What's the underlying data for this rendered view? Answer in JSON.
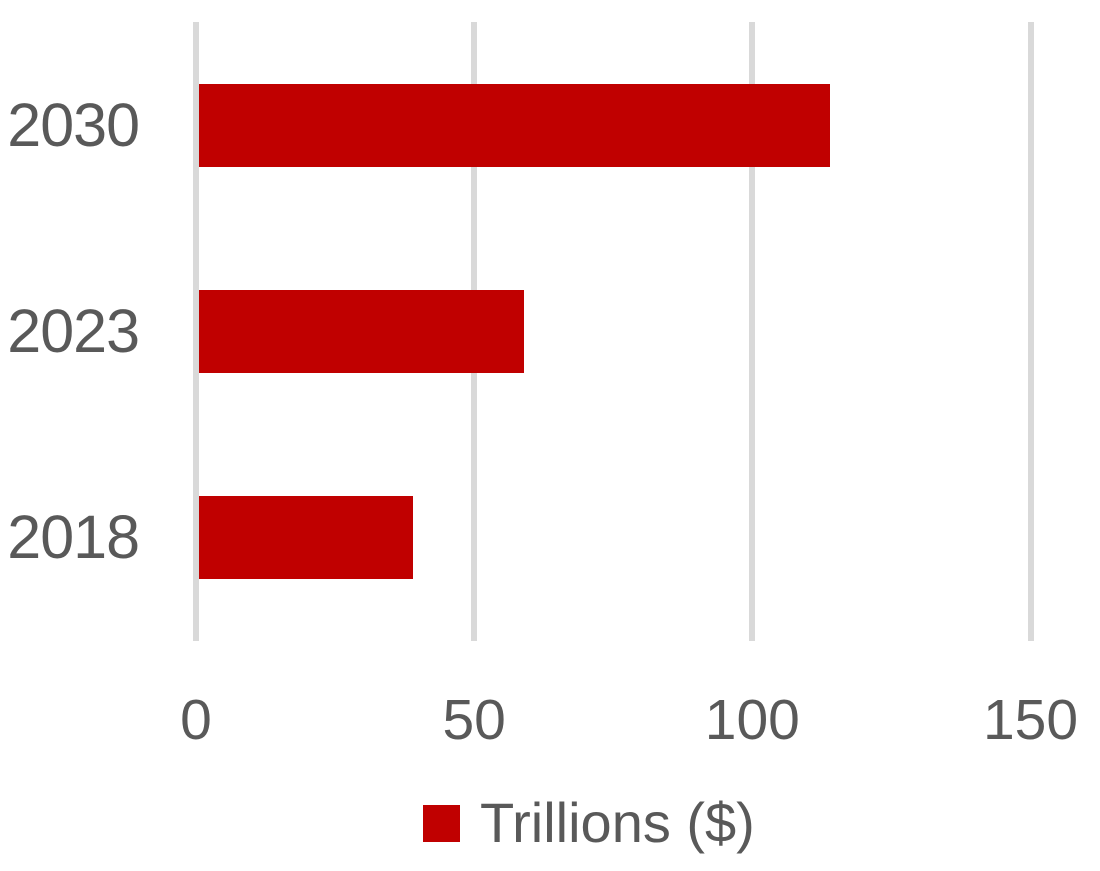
{
  "chart_data": {
    "type": "bar",
    "orientation": "horizontal",
    "title": "",
    "xlabel": "",
    "ylabel": "",
    "categories": [
      "2030",
      "2023",
      "2018"
    ],
    "values": [
      114,
      59,
      39
    ],
    "series_name": "Trillions ($)",
    "legend": "Trillions ($)",
    "legend_position": "bottom",
    "x_ticks": [
      0,
      50,
      100,
      150
    ],
    "x_tick_labels": [
      "0",
      "50",
      "100",
      "150"
    ],
    "xlim": [
      0,
      150
    ],
    "grid": true,
    "colors": {
      "bar": "#C00000",
      "gridline": "#D9D9D9",
      "text": "#595959",
      "background": "#FFFFFF"
    }
  }
}
